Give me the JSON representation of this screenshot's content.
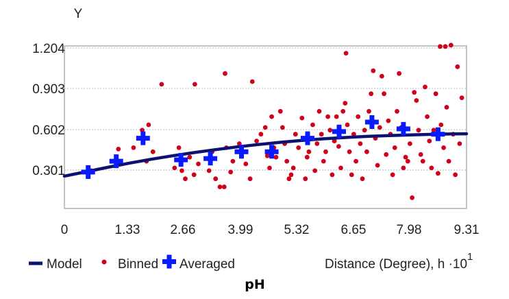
{
  "chart_data": {
    "type": "scatter",
    "ylabel": "Y",
    "xlabel": "Distance (Degree), h ·10",
    "xlabel_exponent": "1",
    "caption": "pH",
    "y_ticks": [
      "1.204",
      "0.903",
      "0.602",
      "0.301"
    ],
    "x_ticks": [
      "0",
      "1.33",
      "2.66",
      "3.99",
      "5.32",
      "6.65",
      "7.98",
      "9.31"
    ],
    "xlim": [
      0,
      9.31
    ],
    "ylim": [
      0,
      1.204
    ],
    "grid": true,
    "legend_position": "bottom",
    "legend": [
      "Model",
      "Binned",
      "Averaged"
    ],
    "colors": {
      "model": "#0b1270",
      "binned": "#d0021b",
      "averaged": "#0a1aff",
      "grid": "#b8b8b8",
      "plot_bg": "#ffffff",
      "frame": "#b0b0b0"
    },
    "model": [
      [
        0,
        0.24
      ],
      [
        0.5,
        0.272
      ],
      [
        1,
        0.305
      ],
      [
        1.5,
        0.336
      ],
      [
        2,
        0.364
      ],
      [
        2.5,
        0.39
      ],
      [
        3,
        0.414
      ],
      [
        3.5,
        0.436
      ],
      [
        4,
        0.456
      ],
      [
        4.5,
        0.474
      ],
      [
        5,
        0.49
      ],
      [
        5.5,
        0.504
      ],
      [
        6,
        0.516
      ],
      [
        6.5,
        0.526
      ],
      [
        7,
        0.534
      ],
      [
        7.5,
        0.54
      ],
      [
        8,
        0.545
      ],
      [
        8.5,
        0.549
      ],
      [
        9,
        0.552
      ],
      [
        9.31,
        0.553
      ]
    ],
    "averaged": [
      [
        0.55,
        0.27
      ],
      [
        1.2,
        0.35
      ],
      [
        1.82,
        0.52
      ],
      [
        2.7,
        0.36
      ],
      [
        3.38,
        0.37
      ],
      [
        4.1,
        0.42
      ],
      [
        4.8,
        0.42
      ],
      [
        5.63,
        0.52
      ],
      [
        6.36,
        0.57
      ],
      [
        7.12,
        0.64
      ],
      [
        7.85,
        0.59
      ],
      [
        8.65,
        0.55
      ]
    ],
    "binned": [
      [
        0.62,
        0.28
      ],
      [
        1.25,
        0.44
      ],
      [
        1.6,
        0.45
      ],
      [
        1.8,
        0.58
      ],
      [
        1.95,
        0.62
      ],
      [
        2.05,
        0.42
      ],
      [
        1.9,
        0.35
      ],
      [
        2.25,
        0.92
      ],
      [
        2.55,
        0.3
      ],
      [
        2.65,
        0.45
      ],
      [
        2.72,
        0.28
      ],
      [
        2.8,
        0.22
      ],
      [
        2.9,
        0.38
      ],
      [
        3.0,
        0.25
      ],
      [
        3.02,
        0.92
      ],
      [
        3.1,
        0.33
      ],
      [
        3.35,
        0.28
      ],
      [
        3.42,
        0.42
      ],
      [
        3.5,
        0.22
      ],
      [
        3.6,
        0.16
      ],
      [
        3.7,
        0.16
      ],
      [
        3.72,
        1.0
      ],
      [
        3.75,
        0.45
      ],
      [
        3.85,
        0.27
      ],
      [
        3.9,
        0.35
      ],
      [
        4.05,
        0.48
      ],
      [
        4.2,
        0.33
      ],
      [
        4.3,
        0.22
      ],
      [
        4.35,
        0.94
      ],
      [
        4.45,
        0.5
      ],
      [
        4.55,
        0.55
      ],
      [
        4.65,
        0.6
      ],
      [
        4.7,
        0.39
      ],
      [
        4.75,
        0.3
      ],
      [
        4.8,
        0.68
      ],
      [
        4.85,
        0.45
      ],
      [
        4.9,
        0.38
      ],
      [
        5.0,
        0.72
      ],
      [
        5.05,
        0.6
      ],
      [
        5.1,
        0.48
      ],
      [
        5.15,
        0.35
      ],
      [
        5.2,
        0.22
      ],
      [
        5.25,
        0.25
      ],
      [
        5.3,
        0.3
      ],
      [
        5.35,
        0.55
      ],
      [
        5.42,
        0.45
      ],
      [
        5.5,
        0.67
      ],
      [
        5.58,
        0.22
      ],
      [
        5.62,
        0.38
      ],
      [
        5.66,
        0.42
      ],
      [
        5.75,
        0.62
      ],
      [
        5.8,
        0.28
      ],
      [
        5.85,
        0.48
      ],
      [
        5.9,
        0.72
      ],
      [
        5.95,
        0.55
      ],
      [
        6.0,
        0.35
      ],
      [
        6.05,
        0.42
      ],
      [
        6.1,
        0.68
      ],
      [
        6.15,
        0.58
      ],
      [
        6.2,
        0.25
      ],
      [
        6.25,
        0.5
      ],
      [
        6.3,
        0.68
      ],
      [
        6.35,
        0.46
      ],
      [
        6.4,
        0.3
      ],
      [
        6.45,
        0.72
      ],
      [
        6.5,
        0.78
      ],
      [
        6.52,
        1.15
      ],
      [
        6.55,
        0.62
      ],
      [
        6.6,
        0.42
      ],
      [
        6.65,
        0.25
      ],
      [
        6.7,
        0.55
      ],
      [
        6.75,
        0.35
      ],
      [
        6.8,
        0.68
      ],
      [
        6.85,
        0.48
      ],
      [
        6.9,
        0.22
      ],
      [
        6.95,
        0.58
      ],
      [
        7.0,
        0.42
      ],
      [
        7.05,
        0.72
      ],
      [
        7.1,
        0.85
      ],
      [
        7.15,
        1.02
      ],
      [
        7.2,
        0.52
      ],
      [
        7.25,
        0.32
      ],
      [
        7.3,
        0.6
      ],
      [
        7.35,
        0.98
      ],
      [
        7.4,
        0.85
      ],
      [
        7.45,
        0.4
      ],
      [
        7.5,
        0.65
      ],
      [
        7.55,
        0.55
      ],
      [
        7.6,
        0.25
      ],
      [
        7.65,
        0.45
      ],
      [
        7.7,
        0.72
      ],
      [
        7.75,
        1.0
      ],
      [
        7.8,
        0.6
      ],
      [
        7.85,
        0.3
      ],
      [
        7.9,
        0.38
      ],
      [
        7.95,
        0.35
      ],
      [
        8.0,
        0.48
      ],
      [
        8.05,
        0.08
      ],
      [
        8.1,
        0.86
      ],
      [
        8.15,
        0.8
      ],
      [
        8.2,
        0.58
      ],
      [
        8.25,
        0.4
      ],
      [
        8.3,
        0.35
      ],
      [
        8.35,
        0.9
      ],
      [
        8.4,
        0.68
      ],
      [
        8.45,
        0.5
      ],
      [
        8.5,
        0.3
      ],
      [
        8.55,
        0.58
      ],
      [
        8.6,
        0.85
      ],
      [
        8.65,
        0.26
      ],
      [
        8.7,
        1.2
      ],
      [
        8.72,
        0.62
      ],
      [
        8.78,
        0.45
      ],
      [
        8.82,
        1.2
      ],
      [
        8.85,
        0.75
      ],
      [
        8.9,
        0.35
      ],
      [
        8.95,
        1.21
      ],
      [
        9.0,
        0.55
      ],
      [
        9.05,
        0.25
      ],
      [
        9.1,
        1.05
      ],
      [
        9.15,
        0.48
      ],
      [
        9.2,
        0.82
      ]
    ]
  }
}
